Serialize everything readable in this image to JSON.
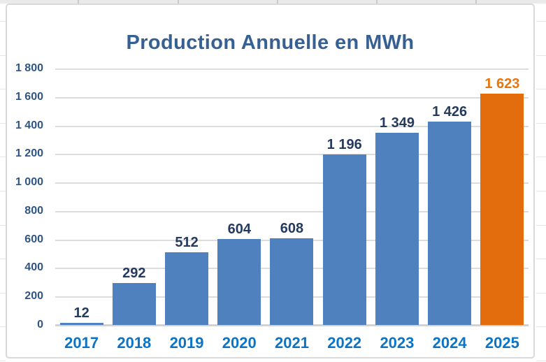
{
  "chart_data": {
    "type": "bar",
    "title": "Production Annuelle en MWh",
    "categories": [
      "2017",
      "2018",
      "2019",
      "2020",
      "2021",
      "2022",
      "2023",
      "2024",
      "2025"
    ],
    "values": [
      12,
      292,
      512,
      604,
      608,
      1196,
      1349,
      1426,
      1623
    ],
    "value_labels": [
      "12",
      "292",
      "512",
      "604",
      "608",
      "1 196",
      "1 349",
      "1 426",
      "1 623"
    ],
    "y_tick_labels": [
      "1 800",
      "1 600",
      "1 400",
      "1 200",
      "1 000",
      "800",
      "600",
      "400",
      "200",
      "0"
    ],
    "ylim": [
      0,
      1800
    ],
    "y_step": 200,
    "grid": true,
    "legend_position": "none",
    "xlabel": "",
    "ylabel": "",
    "colors": {
      "bar": "#4E81BD",
      "highlight_bar": "#E36D0C",
      "title": "#376092",
      "y_tick": "#2E5586",
      "x_tick": "#0C74C6",
      "value_label": "#243A5E",
      "highlight_value_label": "#E8740C",
      "gridline": "#DCDCDC",
      "axis_line": "#D2D2D2",
      "frame_border": "#D9D9D9"
    },
    "highlight_index": 8
  }
}
